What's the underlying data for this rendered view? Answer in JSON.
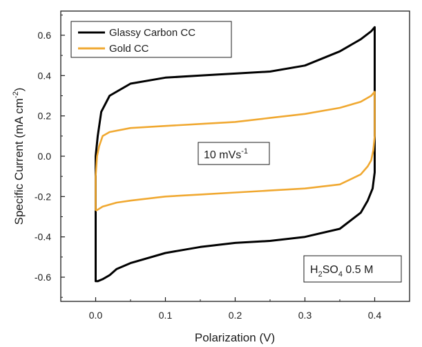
{
  "chart_data": {
    "type": "line",
    "xlabel": "Polarization (V)",
    "ylabel": {
      "main": "Specific Current (mA cm",
      "sup": "-2",
      "end": ")"
    },
    "xlim": [
      -0.05,
      0.45
    ],
    "ylim": [
      -0.72,
      0.72
    ],
    "xticks": [
      0.0,
      0.1,
      0.2,
      0.3,
      0.4
    ],
    "xtick_labels": [
      "0.0",
      "0.1",
      "0.2",
      "0.3",
      "0.4"
    ],
    "yticks": [
      -0.6,
      -0.4,
      -0.2,
      0.0,
      0.2,
      0.4,
      0.6
    ],
    "ytick_labels": [
      "-0.6",
      "-0.4",
      "-0.2",
      "0.0",
      "0.2",
      "0.4",
      "0.6"
    ],
    "grid": false,
    "legend_position": "top-left",
    "annotations": [
      {
        "id": "scan-rate",
        "base": "10 mVs",
        "sup": "-1"
      },
      {
        "id": "electrolyte",
        "h": "H",
        "sub1": "2",
        "mid": "SO",
        "sub2": "4",
        "tail": " 0.5 M"
      }
    ],
    "series": [
      {
        "name": "Glassy Carbon CC",
        "color": "#000000",
        "x": [
          0.0,
          0.0,
          0.003,
          0.008,
          0.02,
          0.05,
          0.1,
          0.15,
          0.2,
          0.25,
          0.3,
          0.35,
          0.38,
          0.395,
          0.4,
          0.4,
          0.4,
          0.4,
          0.397,
          0.39,
          0.38,
          0.35,
          0.3,
          0.25,
          0.2,
          0.15,
          0.1,
          0.05,
          0.03,
          0.02,
          0.01,
          0.003,
          0.0
        ],
        "y": [
          -0.6,
          0.0,
          0.1,
          0.22,
          0.3,
          0.36,
          0.39,
          0.4,
          0.41,
          0.42,
          0.45,
          0.52,
          0.58,
          0.62,
          0.64,
          0.3,
          0.0,
          -0.08,
          -0.16,
          -0.22,
          -0.28,
          -0.36,
          -0.4,
          -0.42,
          -0.43,
          -0.45,
          -0.48,
          -0.53,
          -0.56,
          -0.59,
          -0.61,
          -0.62,
          -0.62
        ]
      },
      {
        "name": "Gold CC",
        "color": "#f0a830",
        "x": [
          0.0,
          0.0,
          0.002,
          0.005,
          0.01,
          0.02,
          0.05,
          0.1,
          0.15,
          0.2,
          0.25,
          0.3,
          0.35,
          0.38,
          0.395,
          0.4,
          0.4,
          0.398,
          0.395,
          0.39,
          0.38,
          0.35,
          0.3,
          0.25,
          0.2,
          0.15,
          0.1,
          0.05,
          0.03,
          0.02,
          0.01,
          0.003,
          0.0
        ],
        "y": [
          -0.27,
          -0.1,
          0.0,
          0.05,
          0.1,
          0.12,
          0.14,
          0.15,
          0.16,
          0.17,
          0.19,
          0.21,
          0.24,
          0.27,
          0.3,
          0.32,
          0.1,
          0.03,
          -0.02,
          -0.05,
          -0.09,
          -0.14,
          -0.16,
          -0.17,
          -0.18,
          -0.19,
          -0.2,
          -0.22,
          -0.23,
          -0.24,
          -0.25,
          -0.265,
          -0.27
        ]
      }
    ]
  }
}
